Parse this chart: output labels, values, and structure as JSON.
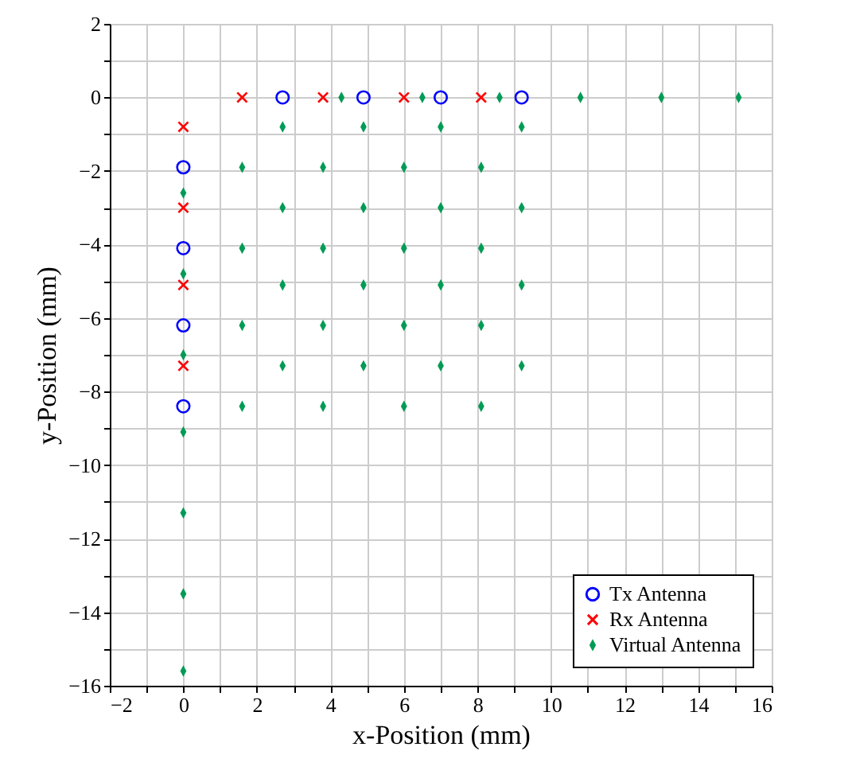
{
  "chart_data": {
    "type": "scatter",
    "xlabel": "x-Position (mm)",
    "ylabel": "y-Position (mm)",
    "xlim": [
      -2,
      16
    ],
    "ylim": [
      -16,
      2
    ],
    "xticks": [
      -2,
      {
        "value": -1,
        "label": null
      },
      0,
      {
        "value": 1,
        "label": null
      },
      2,
      {
        "value": 3,
        "label": null
      },
      4,
      {
        "value": 5,
        "label": null
      },
      6,
      {
        "value": 7,
        "label": null
      },
      8,
      {
        "value": 9,
        "label": null
      },
      10,
      {
        "value": 11,
        "label": null
      },
      12,
      {
        "value": 13,
        "label": null
      },
      14,
      {
        "value": 15,
        "label": null
      },
      16
    ],
    "yticks": [
      -16,
      {
        "value": -15,
        "label": null
      },
      -14,
      {
        "value": -13,
        "label": null
      },
      -12,
      {
        "value": -11,
        "label": null
      },
      -10,
      {
        "value": -9,
        "label": null
      },
      -8,
      {
        "value": -7,
        "label": null
      },
      -6,
      {
        "value": -5,
        "label": null
      },
      -4,
      {
        "value": -3,
        "label": null
      },
      -2,
      {
        "value": -1,
        "label": null
      },
      0,
      {
        "value": 1,
        "label": null
      },
      2
    ],
    "grid": true,
    "legend": "bottom right",
    "series": [
      {
        "name": "Tx Antenna",
        "color": "#0000ff",
        "marker": "circle",
        "x": [
          2.7,
          4.9,
          7.0,
          9.2,
          0,
          0,
          0,
          0
        ],
        "values": [
          0,
          0,
          0,
          0,
          -1.9,
          -4.1,
          -6.2,
          -8.4
        ]
      },
      {
        "name": "Rx Antenna",
        "color": "#ff0000",
        "marker": "cross",
        "x": [
          1.6,
          3.8,
          6.0,
          8.1,
          0,
          0,
          0,
          0
        ],
        "values": [
          0,
          0,
          0,
          0,
          -0.8,
          -3.0,
          -5.1,
          -7.3
        ]
      },
      {
        "name": "Virtual Antenna",
        "color": "#009b55",
        "marker": "diamond",
        "x": [
          4.3,
          6.5,
          8.6,
          10.8,
          13.0,
          15.1,
          0,
          0,
          0,
          0,
          0,
          0,
          0,
          2.7,
          4.9,
          7.0,
          9.2,
          1.6,
          3.8,
          6.0,
          8.1,
          2.7,
          4.9,
          7.0,
          9.2,
          1.6,
          3.8,
          6.0,
          8.1,
          2.7,
          4.9,
          7.0,
          9.2,
          1.6,
          3.8,
          6.0,
          8.1,
          2.7,
          4.9,
          7.0,
          9.2,
          1.6,
          3.8,
          6.0,
          8.1
        ],
        "values": [
          0,
          0,
          0,
          0,
          0,
          0,
          -2.6,
          -4.8,
          -7.0,
          -9.1,
          -11.3,
          -13.5,
          -15.6,
          -0.8,
          -0.8,
          -0.8,
          -0.8,
          -1.9,
          -1.9,
          -1.9,
          -1.9,
          -3.0,
          -3.0,
          -3.0,
          -3.0,
          -4.1,
          -4.1,
          -4.1,
          -4.1,
          -5.1,
          -5.1,
          -5.1,
          -5.1,
          -6.2,
          -6.2,
          -6.2,
          -6.2,
          -7.3,
          -7.3,
          -7.3,
          -7.3,
          -8.4,
          -8.4,
          -8.4,
          -8.4
        ]
      }
    ]
  }
}
